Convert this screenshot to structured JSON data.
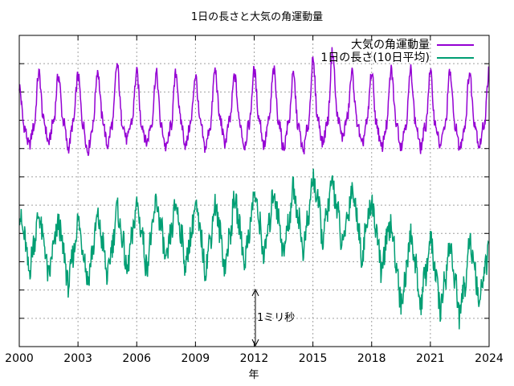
{
  "chart_data": {
    "type": "line",
    "title": "1日の長さと大気の角運動量",
    "xlabel": "年",
    "ylabel": "",
    "xlim": [
      2000,
      2024
    ],
    "x_ticks": [
      "2000",
      "2003",
      "2006",
      "2009",
      "2012",
      "2015",
      "2018",
      "2021",
      "2024"
    ],
    "y_ticks_labeled": false,
    "grid": true,
    "legend_position": "top-right",
    "annotation": {
      "label": "1ミリ秒",
      "x": 2012,
      "note": "double-headed arrow spanning 1 ms on the vertical scale"
    },
    "series": [
      {
        "name": "大気の角運動量",
        "color": "#9400d3",
        "description": "seasonal oscillation with yearly peaks near the start of each year",
        "sample_step_years": 0.25,
        "x_start": 2000,
        "values": [
          0.75,
          0.0,
          -0.35,
          0.0,
          1.0,
          0.1,
          -0.3,
          0.1,
          0.95,
          0.1,
          -0.4,
          0.05,
          0.95,
          0.05,
          -0.45,
          0.0,
          1.05,
          0.15,
          -0.35,
          0.05,
          1.15,
          0.1,
          -0.25,
          0.1,
          1.0,
          0.05,
          -0.3,
          0.05,
          1.0,
          0.0,
          -0.4,
          0.0,
          1.0,
          0.1,
          -0.35,
          0.05,
          0.95,
          0.05,
          -0.4,
          0.0,
          1.05,
          0.15,
          -0.3,
          0.1,
          0.95,
          0.1,
          -0.35,
          0.05,
          1.05,
          0.15,
          -0.35,
          0.1,
          1.05,
          0.1,
          -0.4,
          0.05,
          0.95,
          0.0,
          -0.45,
          0.0,
          1.2,
          0.15,
          -0.3,
          0.1,
          1.4,
          0.2,
          -0.2,
          0.15,
          1.0,
          0.1,
          -0.35,
          0.05,
          1.0,
          0.05,
          -0.4,
          0.0,
          1.05,
          0.1,
          -0.35,
          0.05,
          1.05,
          0.05,
          -0.4,
          0.0,
          1.0,
          0.05,
          -0.35,
          0.0,
          1.0,
          0.05,
          -0.4,
          0.0,
          1.0,
          0.1,
          -0.35,
          0.05,
          1.05
        ]
      },
      {
        "name": "1日の長さ(10日平均)",
        "color": "#009e73",
        "description": "seasonal oscillation plus slow decadal variation, relatively high 2012–2017, dropping around 2019–2023",
        "sample_step_years": 0.25,
        "x_start": 2000,
        "values": [
          -1.6,
          -2.05,
          -2.7,
          -2.15,
          -1.65,
          -2.15,
          -2.8,
          -2.25,
          -1.8,
          -2.3,
          -2.95,
          -2.4,
          -1.75,
          -2.25,
          -2.85,
          -2.3,
          -1.7,
          -2.15,
          -2.8,
          -2.2,
          -1.55,
          -2.05,
          -2.7,
          -2.1,
          -1.45,
          -1.95,
          -2.6,
          -2.05,
          -1.4,
          -1.9,
          -2.55,
          -2.0,
          -1.45,
          -1.95,
          -2.6,
          -2.05,
          -1.5,
          -2.0,
          -2.65,
          -2.1,
          -1.45,
          -1.95,
          -2.6,
          -2.05,
          -1.35,
          -1.85,
          -2.5,
          -1.95,
          -1.25,
          -1.75,
          -2.4,
          -1.85,
          -1.2,
          -1.7,
          -2.35,
          -1.8,
          -1.15,
          -1.65,
          -2.3,
          -1.75,
          -0.95,
          -1.4,
          -2.1,
          -1.55,
          -1.05,
          -1.55,
          -2.25,
          -1.7,
          -1.15,
          -1.65,
          -2.4,
          -1.85,
          -1.4,
          -1.95,
          -2.7,
          -2.15,
          -1.85,
          -2.5,
          -3.3,
          -2.75,
          -2.0,
          -2.6,
          -3.3,
          -2.75,
          -2.1,
          -2.7,
          -3.4,
          -2.85,
          -2.2,
          -2.85,
          -3.55,
          -2.95,
          -2.1,
          -2.7,
          -3.3,
          -2.7,
          -2.35
        ]
      }
    ]
  },
  "x_tick_values": [
    2000,
    2003,
    2006,
    2009,
    2012,
    2015,
    2018,
    2021,
    2024
  ]
}
